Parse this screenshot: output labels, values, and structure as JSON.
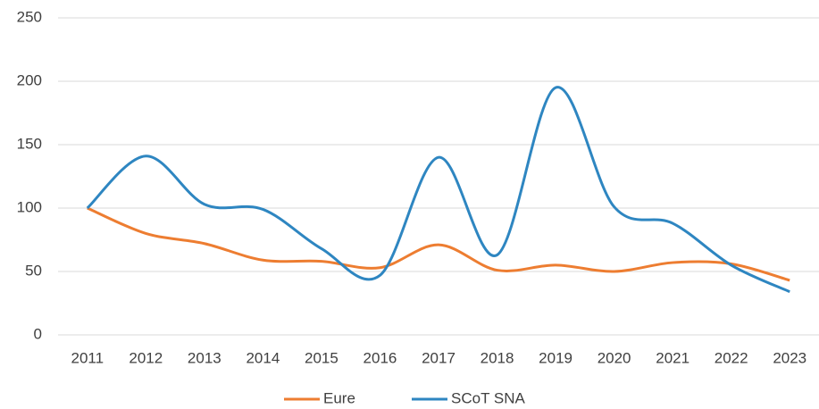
{
  "chart_data": {
    "type": "line",
    "categories": [
      "2011",
      "2012",
      "2013",
      "2014",
      "2015",
      "2016",
      "2017",
      "2018",
      "2019",
      "2020",
      "2021",
      "2022",
      "2023"
    ],
    "series": [
      {
        "name": "Eure",
        "color": "#ED7D31",
        "values": [
          100,
          80,
          72,
          59,
          58,
          53,
          71,
          51,
          55,
          50,
          57,
          56,
          43
        ]
      },
      {
        "name": "SCoT SNA",
        "color": "#2E86C1",
        "values": [
          100,
          141,
          103,
          99,
          68,
          47,
          140,
          63,
          195,
          101,
          88,
          55,
          34
        ]
      }
    ],
    "ylim": [
      0,
      250
    ],
    "yticks": [
      0,
      50,
      100,
      150,
      200,
      250
    ],
    "grid": true,
    "legend": "bottom",
    "smooth": true
  }
}
